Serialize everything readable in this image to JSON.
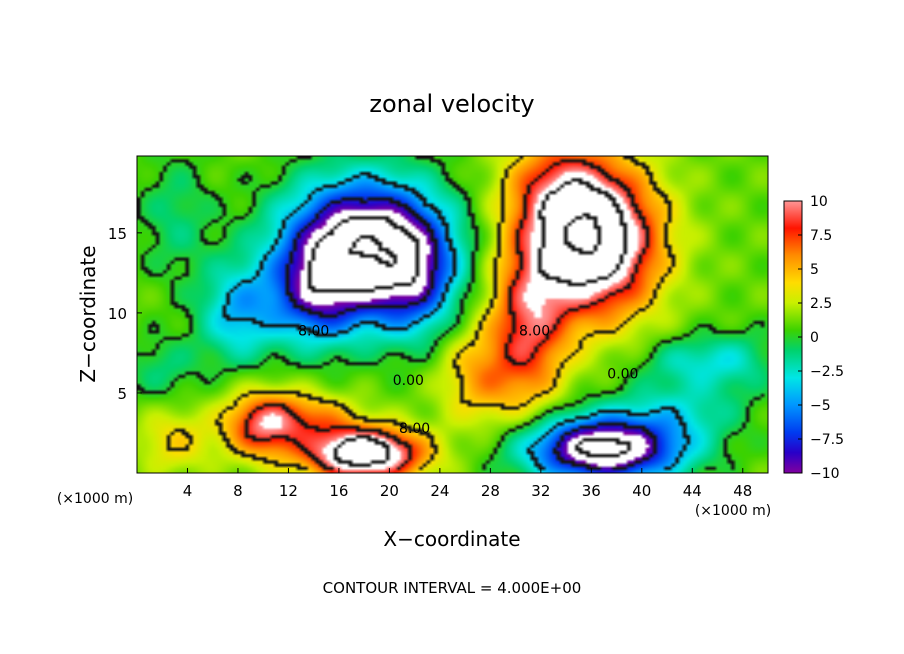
{
  "chart_data": {
    "type": "heatmap",
    "title": "zonal velocity",
    "xlabel": "X−coordinate",
    "ylabel": "Z−coordinate",
    "x_unit_label": "(×1000 m)",
    "contour_interval_text": "CONTOUR INTERVAL = 4.000E+00",
    "xlim": [
      0,
      50
    ],
    "ylim": [
      0,
      19.8
    ],
    "x_ticks": [
      4,
      8,
      12,
      16,
      20,
      24,
      28,
      32,
      36,
      40,
      44,
      48
    ],
    "y_ticks": [
      5,
      10,
      15
    ],
    "colorbar": {
      "min": -10,
      "max": 10,
      "ticks": [
        10,
        7.5,
        5,
        2.5,
        0,
        -2.5,
        -5,
        -7.5,
        -10
      ],
      "tick_labels": [
        "10",
        "7.5",
        "5",
        "2.5",
        "0",
        "−2.5",
        "−5",
        "−7.5",
        "−10"
      ]
    },
    "contour_labels": [
      {
        "text": "8.00",
        "x": 14.0,
        "y": 8.6
      },
      {
        "text": "8.00",
        "x": 31.5,
        "y": 8.6
      },
      {
        "text": "0.00",
        "x": 21.5,
        "y": 5.5
      },
      {
        "text": "0.00",
        "x": 38.5,
        "y": 5.9
      },
      {
        "text": "8.00",
        "x": 22.0,
        "y": 2.5
      }
    ],
    "features": [
      {
        "x": 18,
        "y": 14,
        "sx": 6.0,
        "sy": 4.0,
        "amp": -16
      },
      {
        "x": 14,
        "y": 11,
        "sx": 3.5,
        "sy": 3.0,
        "amp": -6
      },
      {
        "x": 22,
        "y": 12,
        "sx": 3.0,
        "sy": 3.5,
        "amp": -5
      },
      {
        "x": 8,
        "y": 10,
        "sx": 3.0,
        "sy": 3.0,
        "amp": -5
      },
      {
        "x": 3,
        "y": 16,
        "sx": 3.0,
        "sy": 4.0,
        "amp": -2
      },
      {
        "x": 36,
        "y": 14.5,
        "sx": 5.0,
        "sy": 4.5,
        "amp": 15
      },
      {
        "x": 31,
        "y": 9,
        "sx": 3.0,
        "sy": 5.0,
        "amp": 7
      },
      {
        "x": 33,
        "y": 18,
        "sx": 4.0,
        "sy": 3.0,
        "amp": 4
      },
      {
        "x": 18,
        "y": 1.2,
        "sx": 4.5,
        "sy": 1.6,
        "amp": 14
      },
      {
        "x": 10,
        "y": 3.0,
        "sx": 3.0,
        "sy": 2.0,
        "amp": 8
      },
      {
        "x": 14,
        "y": 3.5,
        "sx": 3.5,
        "sy": 1.5,
        "amp": 4
      },
      {
        "x": 3,
        "y": 2.0,
        "sx": 3.0,
        "sy": 2.0,
        "amp": 3
      },
      {
        "x": 37,
        "y": 1.5,
        "sx": 6.0,
        "sy": 2.0,
        "amp": -14
      },
      {
        "x": 43,
        "y": 4.0,
        "sx": 5.0,
        "sy": 2.0,
        "amp": -3
      },
      {
        "x": 44,
        "y": 7.0,
        "sx": 4.0,
        "sy": 1.5,
        "amp": -3
      },
      {
        "x": 48,
        "y": 7.0,
        "sx": 3.0,
        "sy": 2.0,
        "amp": -2
      },
      {
        "x": 27,
        "y": 6.0,
        "sx": 3.0,
        "sy": 3.0,
        "amp": 4
      },
      {
        "x": 2,
        "y": 6.5,
        "sx": 3.0,
        "sy": 2.0,
        "amp": -2
      }
    ]
  }
}
